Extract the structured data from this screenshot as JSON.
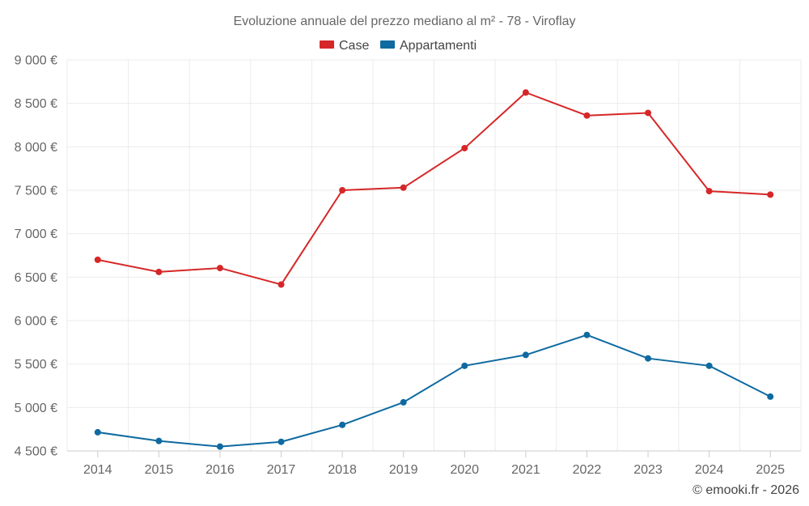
{
  "chart_data": {
    "type": "line",
    "title": "Evoluzione annuale del prezzo mediano al m² - 78 - Viroflay",
    "categories": [
      "2014",
      "2015",
      "2016",
      "2017",
      "2018",
      "2019",
      "2020",
      "2021",
      "2022",
      "2023",
      "2024",
      "2025"
    ],
    "series": [
      {
        "name": "Case",
        "color": "#d62728",
        "values": [
          6700,
          6560,
          6605,
          6415,
          7500,
          7530,
          7985,
          8625,
          8360,
          8390,
          7490,
          7450
        ]
      },
      {
        "name": "Appartamenti",
        "color": "#0e6aa0",
        "values": [
          4715,
          4615,
          4550,
          4605,
          4800,
          5060,
          5480,
          5605,
          5835,
          5565,
          5480,
          5125
        ]
      }
    ],
    "ylim": [
      4500,
      9000
    ],
    "yticks": [
      4500,
      5000,
      5500,
      6000,
      6500,
      7000,
      7500,
      8000,
      8500,
      9000
    ],
    "ytick_labels": [
      "4 500 €",
      "5 000 €",
      "5 500 €",
      "6 000 €",
      "6 500 €",
      "7 000 €",
      "7 500 €",
      "8 000 €",
      "8 500 €",
      "9 000 €"
    ],
    "xlabel": "",
    "ylabel": "",
    "grid": true,
    "legend_position": "top-center"
  },
  "credit": "© emooki.fr - 2026"
}
